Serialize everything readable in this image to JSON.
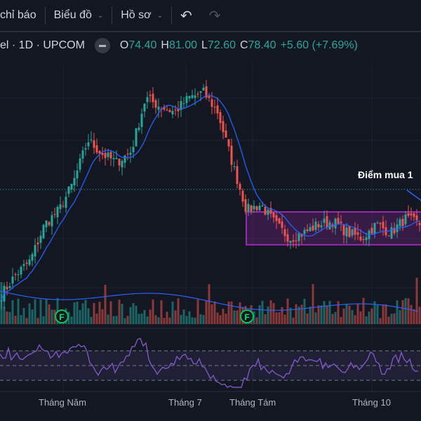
{
  "toolbar": {
    "indicators": "chỉ báo",
    "chart": "Biểu đồ",
    "profile": "Hồ sơ",
    "undo_icon": "undo-arrow",
    "redo_icon": "redo-arrow"
  },
  "legend": {
    "symbol": "el · 1D · UPCOM",
    "o_label": "O",
    "o": "74.40",
    "h_label": "H",
    "h": "81.00",
    "l_label": "L",
    "l": "72.60",
    "c_label": "C",
    "c": "78.40",
    "change": "+5.60 (+7.69%)"
  },
  "annotation": {
    "text": "Điểm mua 1"
  },
  "markers": [
    "F",
    "F"
  ],
  "colors": {
    "up": "#26a69a",
    "down": "#ef5350",
    "ma": "#2962ff",
    "box": "#9c27b0",
    "rsi": "#7e57c2"
  },
  "chart_data": {
    "type": "candlestick",
    "x_labels": [
      "Tháng Năm",
      "Tháng 7",
      "Tháng Tám",
      "Tháng 10"
    ],
    "close_keyframes": [
      41,
      48,
      53,
      66,
      71,
      81,
      96,
      91,
      88,
      92,
      111,
      108,
      106,
      111,
      113,
      106,
      88,
      71,
      73,
      66,
      61,
      63,
      66,
      67,
      63,
      61,
      66,
      63,
      68,
      66
    ],
    "last_price": 78.4,
    "box": {
      "top": 70.4,
      "bottom": 58.7
    },
    "indicators": [
      "MA",
      "Volume",
      "Volume MA",
      "RSI"
    ]
  }
}
